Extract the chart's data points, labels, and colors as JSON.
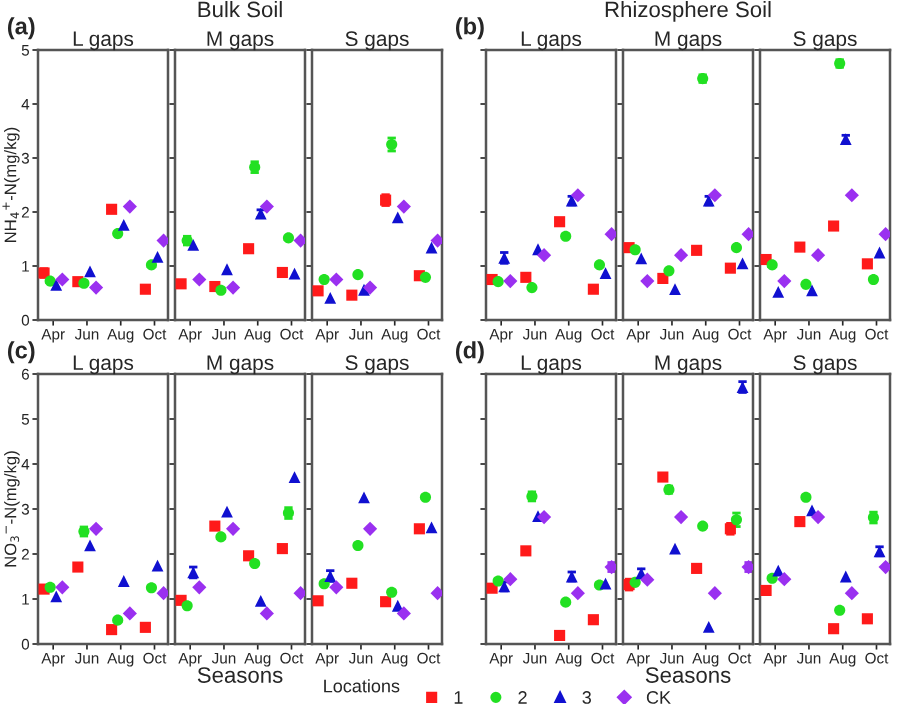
{
  "chart_data": [
    {
      "type": "scatter",
      "title": "L gaps",
      "annotations": [
        "(a)",
        "Bulk Soil"
      ],
      "ylabel": "NH$_{4}$$^{+}$-N(mg/kg)",
      "categories": [
        "Apr",
        "Jun",
        "Aug",
        "Oct"
      ],
      "ylim": [
        0,
        5
      ],
      "yticks": [
        0,
        1,
        2,
        3,
        4,
        5
      ],
      "legend": "bottom",
      "legend_title": "Locations",
      "series": [
        {
          "name": "1",
          "color": "#ff1a1a",
          "marker": "square",
          "values": [
            0.87,
            0.71,
            2.05,
            0.57
          ],
          "errors": [
            0.08,
            null,
            null,
            null
          ]
        },
        {
          "name": "2",
          "color": "#22e022",
          "marker": "circle",
          "values": [
            0.72,
            0.68,
            1.6,
            1.02
          ]
        },
        {
          "name": "3",
          "color": "#1010d0",
          "marker": "triangle",
          "values": [
            0.65,
            0.9,
            1.76,
            1.17
          ]
        },
        {
          "name": "CK",
          "color": "#9a30f0",
          "marker": "diamond",
          "values": [
            0.75,
            0.6,
            2.1,
            1.47
          ]
        }
      ]
    },
    {
      "type": "scatter",
      "title": "M gaps",
      "categories": [
        "Apr",
        "Jun",
        "Aug",
        "Oct"
      ],
      "ylim": [
        0,
        5
      ],
      "yticks": [
        0,
        1,
        2,
        3,
        4,
        5
      ],
      "tick_labels": "x",
      "series": [
        {
          "color": "#ff1a1a",
          "marker": "square",
          "values": [
            0.67,
            0.62,
            1.32,
            0.88
          ]
        },
        {
          "color": "#22e022",
          "marker": "circle",
          "values": [
            1.47,
            0.55,
            2.83,
            1.52
          ],
          "errors": [
            0.08,
            null,
            0.1,
            null
          ]
        },
        {
          "color": "#1010d0",
          "marker": "triangle",
          "values": [
            1.39,
            0.94,
            1.97,
            0.86
          ],
          "errors": [
            null,
            null,
            0.07,
            null
          ]
        },
        {
          "color": "#9a30f0",
          "marker": "diamond",
          "values": [
            0.75,
            0.6,
            2.1,
            1.47
          ]
        }
      ]
    },
    {
      "type": "scatter",
      "title": "S gaps",
      "categories": [
        "Apr",
        "Jun",
        "Aug",
        "Oct"
      ],
      "ylim": [
        0,
        5
      ],
      "yticks": [
        0,
        1,
        2,
        3,
        4,
        5
      ],
      "tick_labels": "x",
      "series": [
        {
          "color": "#ff1a1a",
          "marker": "square",
          "values": [
            0.54,
            0.46,
            2.22,
            0.82
          ],
          "errors": [
            null,
            null,
            0.1,
            null
          ]
        },
        {
          "color": "#22e022",
          "marker": "circle",
          "values": [
            0.75,
            0.84,
            3.25,
            0.79
          ],
          "errors": [
            null,
            null,
            0.12,
            null
          ]
        },
        {
          "color": "#1010d0",
          "marker": "triangle",
          "values": [
            0.41,
            0.56,
            1.9,
            1.34
          ]
        },
        {
          "color": "#9a30f0",
          "marker": "diamond",
          "values": [
            0.75,
            0.6,
            2.1,
            1.47
          ]
        }
      ]
    },
    {
      "type": "scatter",
      "title": "L gaps",
      "annotations": [
        "(b)",
        "Rhizosphere Soil"
      ],
      "categories": [
        "Apr",
        "Jun",
        "Aug",
        "Oct"
      ],
      "ylim": [
        0,
        5
      ],
      "yticks": [
        0,
        1,
        2,
        3,
        4,
        5
      ],
      "tick_labels": "x",
      "series": [
        {
          "color": "#ff1a1a",
          "marker": "square",
          "values": [
            0.75,
            0.79,
            1.82,
            0.57
          ]
        },
        {
          "color": "#22e022",
          "marker": "circle",
          "values": [
            0.71,
            0.6,
            1.55,
            1.02
          ]
        },
        {
          "color": "#1010d0",
          "marker": "triangle",
          "values": [
            1.15,
            1.31,
            2.21,
            0.87
          ],
          "errors": [
            0.1,
            null,
            0.08,
            null
          ]
        },
        {
          "color": "#9a30f0",
          "marker": "diamond",
          "values": [
            0.72,
            1.2,
            2.31,
            1.59
          ]
        }
      ]
    },
    {
      "type": "scatter",
      "title": "M gaps",
      "categories": [
        "Apr",
        "Jun",
        "Aug",
        "Oct"
      ],
      "ylim": [
        0,
        5
      ],
      "yticks": [
        0,
        1,
        2,
        3,
        4,
        5
      ],
      "tick_labels": "x",
      "series": [
        {
          "color": "#ff1a1a",
          "marker": "square",
          "values": [
            1.34,
            0.77,
            1.29,
            0.96
          ]
        },
        {
          "color": "#22e022",
          "marker": "circle",
          "values": [
            1.3,
            0.91,
            4.47,
            1.34
          ],
          "errors": [
            null,
            null,
            0.07,
            null
          ]
        },
        {
          "color": "#1010d0",
          "marker": "triangle",
          "values": [
            1.14,
            0.57,
            2.21,
            1.05
          ],
          "errors": [
            null,
            null,
            0.08,
            null
          ]
        },
        {
          "color": "#9a30f0",
          "marker": "diamond",
          "values": [
            0.72,
            1.2,
            2.31,
            1.59
          ]
        }
      ]
    },
    {
      "type": "scatter",
      "title": "S gaps",
      "categories": [
        "Apr",
        "Jun",
        "Aug",
        "Oct"
      ],
      "ylim": [
        0,
        5
      ],
      "yticks": [
        0,
        1,
        2,
        3,
        4,
        5
      ],
      "tick_labels": "x",
      "series": [
        {
          "color": "#ff1a1a",
          "marker": "square",
          "values": [
            1.12,
            1.35,
            1.74,
            1.04
          ]
        },
        {
          "color": "#22e022",
          "marker": "circle",
          "values": [
            1.02,
            0.66,
            4.75,
            0.75
          ],
          "errors": [
            null,
            null,
            0.07,
            null
          ]
        },
        {
          "color": "#1010d0",
          "marker": "triangle",
          "values": [
            0.52,
            0.55,
            3.35,
            1.25
          ],
          "errors": [
            null,
            null,
            0.07,
            null
          ]
        },
        {
          "color": "#9a30f0",
          "marker": "diamond",
          "values": [
            0.72,
            1.2,
            2.31,
            1.59
          ]
        }
      ]
    },
    {
      "type": "scatter",
      "title": "L gaps",
      "annotations": [
        "(c)"
      ],
      "ylabel": "NO$_{3}$$^{−}$-N(mg/kg)",
      "categories": [
        "Apr",
        "Jun",
        "Aug",
        "Oct"
      ],
      "ylim": [
        0,
        6
      ],
      "yticks": [
        0,
        1,
        2,
        3,
        4,
        5,
        6
      ],
      "series": [
        {
          "color": "#ff1a1a",
          "marker": "square",
          "values": [
            1.22,
            1.71,
            0.32,
            0.37
          ]
        },
        {
          "color": "#22e022",
          "marker": "circle",
          "values": [
            1.26,
            2.5,
            0.53,
            1.25
          ],
          "errors": [
            null,
            0.1,
            null,
            null
          ]
        },
        {
          "color": "#1010d0",
          "marker": "triangle",
          "values": [
            1.06,
            2.19,
            1.4,
            1.74
          ]
        },
        {
          "color": "#9a30f0",
          "marker": "diamond",
          "values": [
            1.26,
            2.56,
            0.68,
            1.13
          ]
        }
      ]
    },
    {
      "type": "scatter",
      "title": "M gaps",
      "xlabel": "Seasons",
      "categories": [
        "Apr",
        "Jun",
        "Aug",
        "Oct"
      ],
      "ylim": [
        0,
        6
      ],
      "yticks": [
        0,
        1,
        2,
        3,
        4,
        5,
        6
      ],
      "tick_labels": "x",
      "series": [
        {
          "color": "#ff1a1a",
          "marker": "square",
          "values": [
            0.97,
            2.62,
            1.96,
            2.12
          ]
        },
        {
          "color": "#22e022",
          "marker": "circle",
          "values": [
            0.85,
            2.38,
            1.79,
            2.91
          ],
          "errors": [
            null,
            null,
            null,
            0.12
          ]
        },
        {
          "color": "#1010d0",
          "marker": "triangle",
          "values": [
            1.59,
            2.94,
            0.96,
            3.71
          ],
          "errors": [
            0.12,
            null,
            null,
            null
          ]
        },
        {
          "color": "#9a30f0",
          "marker": "diamond",
          "values": [
            1.26,
            2.56,
            0.68,
            1.13
          ]
        }
      ]
    },
    {
      "type": "scatter",
      "title": "S gaps",
      "categories": [
        "Apr",
        "Jun",
        "Aug",
        "Oct"
      ],
      "ylim": [
        0,
        6
      ],
      "yticks": [
        0,
        1,
        2,
        3,
        4,
        5,
        6
      ],
      "tick_labels": "x",
      "series": [
        {
          "color": "#ff1a1a",
          "marker": "square",
          "values": [
            0.96,
            1.35,
            0.94,
            2.56
          ]
        },
        {
          "color": "#22e022",
          "marker": "circle",
          "values": [
            1.34,
            2.19,
            1.15,
            3.26
          ]
        },
        {
          "color": "#1010d0",
          "marker": "triangle",
          "values": [
            1.51,
            3.26,
            0.85,
            2.59
          ],
          "errors": [
            0.12,
            null,
            null,
            null
          ]
        },
        {
          "color": "#9a30f0",
          "marker": "diamond",
          "values": [
            1.26,
            2.56,
            0.68,
            1.13
          ]
        }
      ]
    },
    {
      "type": "scatter",
      "title": "L gaps",
      "annotations": [
        "(d)"
      ],
      "categories": [
        "Apr",
        "Jun",
        "Aug",
        "Oct"
      ],
      "ylim": [
        0,
        6
      ],
      "yticks": [
        0,
        1,
        2,
        3,
        4,
        5,
        6
      ],
      "tick_labels": "x",
      "series": [
        {
          "color": "#ff1a1a",
          "marker": "square",
          "values": [
            1.24,
            2.07,
            0.19,
            0.54
          ]
        },
        {
          "color": "#22e022",
          "marker": "circle",
          "values": [
            1.4,
            3.28,
            0.93,
            1.31
          ],
          "errors": [
            null,
            0.1,
            null,
            null
          ]
        },
        {
          "color": "#1010d0",
          "marker": "triangle",
          "values": [
            1.28,
            2.84,
            1.5,
            1.34
          ],
          "errors": [
            0.1,
            null,
            0.1,
            null
          ]
        },
        {
          "color": "#9a30f0",
          "marker": "diamond",
          "values": [
            1.44,
            2.82,
            1.13,
            1.71
          ],
          "errors": [
            null,
            null,
            null,
            0.1
          ]
        }
      ]
    },
    {
      "type": "scatter",
      "title": "M gaps",
      "xlabel": "Seasons",
      "categories": [
        "Apr",
        "Jun",
        "Aug",
        "Oct"
      ],
      "ylim": [
        0,
        6
      ],
      "yticks": [
        0,
        1,
        2,
        3,
        4,
        5,
        6
      ],
      "tick_labels": "x",
      "series": [
        {
          "color": "#ff1a1a",
          "marker": "square",
          "values": [
            1.32,
            3.71,
            1.68,
            2.56
          ],
          "errors": [
            0.12,
            null,
            null,
            0.12
          ]
        },
        {
          "color": "#22e022",
          "marker": "circle",
          "values": [
            1.37,
            3.43,
            2.62,
            2.76
          ],
          "errors": [
            null,
            0.08,
            null,
            0.15
          ]
        },
        {
          "color": "#1010d0",
          "marker": "triangle",
          "values": [
            1.57,
            2.12,
            0.38,
            5.71
          ],
          "errors": [
            0.1,
            null,
            null,
            0.12
          ]
        },
        {
          "color": "#9a30f0",
          "marker": "diamond",
          "values": [
            1.43,
            2.82,
            1.13,
            1.71
          ],
          "errors": [
            null,
            null,
            null,
            0.1
          ]
        }
      ]
    },
    {
      "type": "scatter",
      "title": "S gaps",
      "categories": [
        "Apr",
        "Jun",
        "Aug",
        "Oct"
      ],
      "ylim": [
        0,
        6
      ],
      "yticks": [
        0,
        1,
        2,
        3,
        4,
        5,
        6
      ],
      "tick_labels": "x",
      "series": [
        {
          "color": "#ff1a1a",
          "marker": "square",
          "values": [
            1.19,
            2.72,
            0.34,
            0.56
          ]
        },
        {
          "color": "#22e022",
          "marker": "circle",
          "values": [
            1.46,
            3.26,
            0.75,
            2.81
          ],
          "errors": [
            null,
            null,
            null,
            0.12
          ]
        },
        {
          "color": "#1010d0",
          "marker": "triangle",
          "values": [
            1.63,
            2.97,
            1.5,
            2.06
          ],
          "errors": [
            null,
            null,
            null,
            0.1
          ]
        },
        {
          "color": "#9a30f0",
          "marker": "diamond",
          "values": [
            1.44,
            2.82,
            1.13,
            1.71
          ]
        }
      ]
    }
  ]
}
